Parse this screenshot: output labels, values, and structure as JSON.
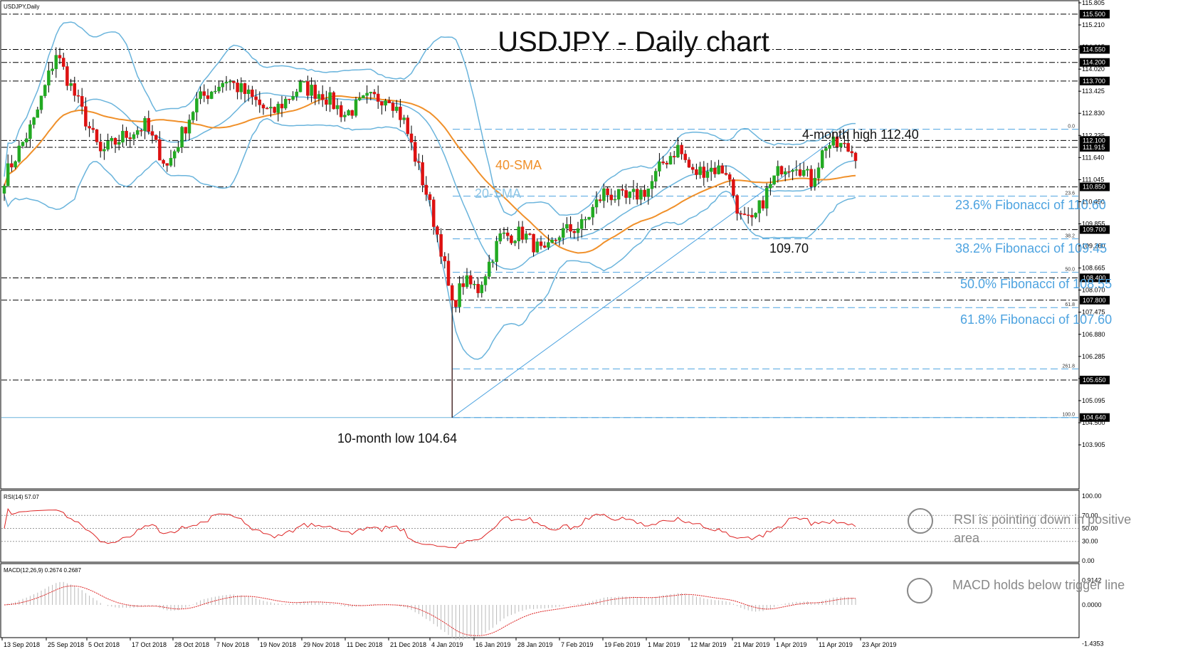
{
  "header": {
    "symbol": "USDJPY,Daily"
  },
  "title": "USDJPY - Daily chart",
  "colors": {
    "bull": "#22aa22",
    "bear": "#dd1111",
    "bollinger": "#6ab4dc",
    "sma40": "#f0902a",
    "fib": "#4da3e0",
    "rsi": "#dd2222",
    "macd_signal": "#dd2222",
    "macd_hist": "#b9b9b9"
  },
  "chart_data": {
    "type": "candlestick",
    "symbol": "USDJPY",
    "timeframe": "Daily",
    "ylim": [
      103.4,
      116.0
    ],
    "y_ticks": [
      "115.805",
      "115.210",
      "114.615",
      "114.020",
      "113.425",
      "112.830",
      "112.235",
      "111.640",
      "111.045",
      "110.450",
      "109.855",
      "109.260",
      "108.665",
      "108.070",
      "107.475",
      "106.880",
      "106.285",
      "105.690",
      "105.095",
      "104.500",
      "103.905"
    ],
    "x_ticks": [
      "13 Sep 2018",
      "25 Sep 2018",
      "5 Oct 2018",
      "17 Oct 2018",
      "28 Oct 2018",
      "7 Nov 2018",
      "19 Nov 2018",
      "29 Nov 2018",
      "11 Dec 2018",
      "21 Dec 2018",
      "4 Jan 2019",
      "16 Jan 2019",
      "28 Jan 2019",
      "7 Feb 2019",
      "19 Feb 2019",
      "1 Mar 2019",
      "12 Mar 2019",
      "21 Mar 2019",
      "1 Apr 2019",
      "11 Apr 2019",
      "23 Apr 2019"
    ],
    "horizontal_levels": [
      {
        "value": 115.5,
        "label": "115.500"
      },
      {
        "value": 114.55,
        "label": "114.550"
      },
      {
        "value": 114.2,
        "label": "114.200"
      },
      {
        "value": 113.7,
        "label": "113.700"
      },
      {
        "value": 112.1,
        "label": "112.100"
      },
      {
        "value": 111.915,
        "label": "111.915"
      },
      {
        "value": 110.85,
        "label": "110.850"
      },
      {
        "value": 109.7,
        "label": "109.700"
      },
      {
        "value": 108.4,
        "label": "108.400"
      },
      {
        "value": 107.8,
        "label": "107.800"
      },
      {
        "value": 105.65,
        "label": "105.650"
      },
      {
        "value": 104.64,
        "label": "104.640"
      }
    ],
    "fibonacci": [
      {
        "value": 112.4,
        "ratio": "0.0",
        "label": ""
      },
      {
        "value": 110.6,
        "ratio": "23.6",
        "label": "23.6% Fibonacci of 110.60"
      },
      {
        "value": 109.45,
        "ratio": "38.2",
        "label": "38.2% Fibonacci of 109.45"
      },
      {
        "value": 108.55,
        "ratio": "50.0",
        "label": "50.0% Fibonacci of 108.55"
      },
      {
        "value": 107.6,
        "ratio": "61.8",
        "label": "61.8% Fibonacci of 107.60"
      },
      {
        "value": 105.95,
        "ratio": "261.8",
        "label": ""
      },
      {
        "value": 104.64,
        "ratio": "100.0",
        "label": ""
      }
    ],
    "annotations": {
      "high": "4-month high 112.40",
      "low": "10-month low 104.64",
      "mid_low": "109.70",
      "sma40": "40-SMA",
      "sma20": "20-SMA"
    },
    "price_anchors": [
      [
        0,
        111.1
      ],
      [
        8,
        112.6
      ],
      [
        14,
        114.45
      ],
      [
        20,
        113.1
      ],
      [
        26,
        111.75
      ],
      [
        32,
        112.2
      ],
      [
        38,
        112.5
      ],
      [
        44,
        111.4
      ],
      [
        52,
        113.15
      ],
      [
        60,
        113.75
      ],
      [
        66,
        113.3
      ],
      [
        72,
        112.8
      ],
      [
        80,
        113.55
      ],
      [
        86,
        113.35
      ],
      [
        92,
        112.8
      ],
      [
        98,
        113.2
      ],
      [
        104,
        113.3
      ],
      [
        108,
        112.6
      ],
      [
        114,
        110.7
      ],
      [
        118,
        109.2
      ],
      [
        121,
        107.6
      ],
      [
        124,
        108.3
      ],
      [
        128,
        108.1
      ],
      [
        134,
        109.5
      ],
      [
        140,
        109.6
      ],
      [
        146,
        109.0
      ],
      [
        150,
        109.6
      ],
      [
        156,
        109.8
      ],
      [
        162,
        110.7
      ],
      [
        168,
        110.5
      ],
      [
        174,
        110.8
      ],
      [
        178,
        111.5
      ],
      [
        182,
        111.9
      ],
      [
        186,
        111.2
      ],
      [
        190,
        111.35
      ],
      [
        195,
        111.3
      ],
      [
        199,
        110.0
      ],
      [
        202,
        109.85
      ],
      [
        206,
        110.7
      ],
      [
        210,
        111.4
      ],
      [
        214,
        111.5
      ],
      [
        218,
        111.0
      ],
      [
        222,
        112.0
      ],
      [
        226,
        111.95
      ],
      [
        230,
        111.75
      ]
    ],
    "candle_count": 231
  },
  "rsi": {
    "label": "RSI(14) 57.07",
    "ticks": [
      "100.00",
      "70.00",
      "50.00",
      "30.00",
      "0.00"
    ],
    "levels": [
      70,
      50,
      30
    ],
    "note_line1": "RSI is pointing down in positive",
    "note_line2": "area"
  },
  "macd": {
    "label": "MACD(12,26,9) 0.2674 0.2687",
    "ticks": [
      "0.9142",
      "0.0000",
      "-1.4353"
    ],
    "note": "MACD holds below trigger line"
  }
}
